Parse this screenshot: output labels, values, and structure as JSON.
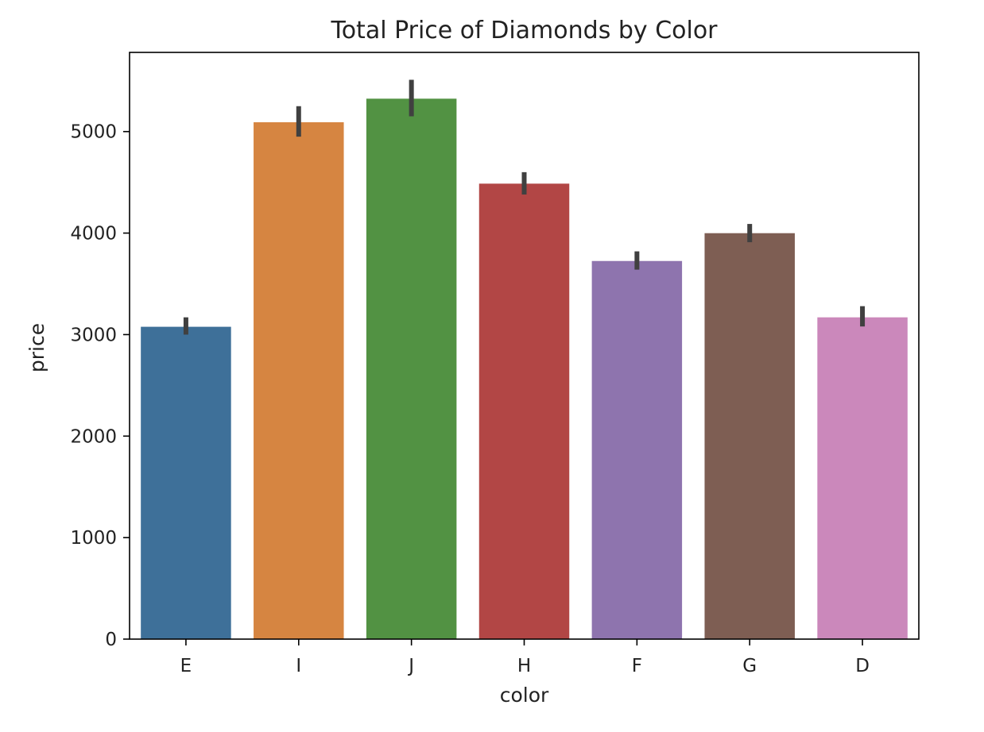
{
  "chart_data": {
    "type": "bar",
    "title": "Total Price of Diamonds by Color",
    "xlabel": "color",
    "ylabel": "price",
    "categories": [
      "E",
      "I",
      "J",
      "H",
      "F",
      "G",
      "D"
    ],
    "values": [
      3077,
      5092,
      5324,
      4487,
      3725,
      3999,
      3170
    ],
    "error_bars": [
      [
        3000,
        3170
      ],
      [
        4950,
        5250
      ],
      [
        5150,
        5510
      ],
      [
        4380,
        4600
      ],
      [
        3640,
        3820
      ],
      [
        3910,
        4090
      ],
      [
        3080,
        3280
      ]
    ],
    "colors": [
      "#3e7099",
      "#d68541",
      "#529243",
      "#b24645",
      "#8e74ae",
      "#7e5e53",
      "#cb88bb"
    ],
    "error_bar_color": "#404040",
    "ylim": [
      0,
      5780
    ],
    "yticks": [
      0,
      1000,
      2000,
      3000,
      4000,
      5000
    ],
    "ytick_labels": [
      "0",
      "1000",
      "2000",
      "3000",
      "4000",
      "5000"
    ],
    "grid": false,
    "legend": "none"
  }
}
